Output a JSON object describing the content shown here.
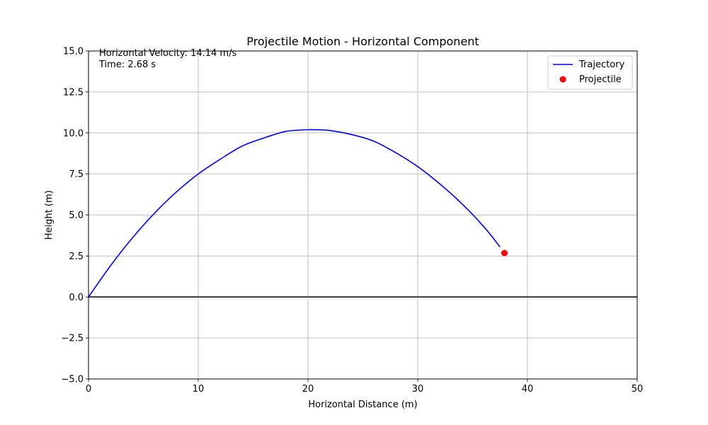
{
  "chart_data": {
    "type": "line",
    "title": "Projectile Motion - Horizontal Component",
    "xlabel": "Horizontal Distance (m)",
    "ylabel": "Height (m)",
    "xlim": [
      0,
      50
    ],
    "ylim": [
      -5,
      15
    ],
    "x_ticks": [
      0,
      10,
      20,
      30,
      40,
      50
    ],
    "x_tick_labels": [
      "0",
      "10",
      "20",
      "30",
      "40",
      "50"
    ],
    "y_ticks": [
      -5,
      -2.5,
      0,
      2.5,
      5,
      7.5,
      10,
      12.5,
      15
    ],
    "y_tick_labels": [
      "−5.0",
      "−2.5",
      "0.0",
      "2.5",
      "5.0",
      "7.5",
      "10.0",
      "12.5",
      "15.0"
    ],
    "grid": true,
    "legend_position": "top-right",
    "annotations": [
      "Horizontal Velocity: 14.14 m/s",
      "Time: 2.68 s"
    ],
    "reference_line": {
      "y": 0,
      "color": "#000000"
    },
    "series": [
      {
        "name": "Trajectory",
        "kind": "line",
        "color": "#0000ff",
        "x": [
          0,
          2,
          4,
          6,
          8,
          10,
          12,
          14,
          16,
          18,
          20,
          20.4,
          22,
          24,
          26,
          28,
          30,
          32,
          34,
          36,
          37.5
        ],
        "y": [
          0,
          1.9,
          3.6,
          5.1,
          6.4,
          7.5,
          8.4,
          9.2,
          9.7,
          10.1,
          10.2,
          10.2,
          10.15,
          9.9,
          9.5,
          8.8,
          7.95,
          6.9,
          5.7,
          4.3,
          3.05
        ]
      },
      {
        "name": "Projectile",
        "kind": "scatter",
        "color": "#ff0000",
        "x": [
          37.9
        ],
        "y": [
          2.68
        ]
      }
    ]
  }
}
